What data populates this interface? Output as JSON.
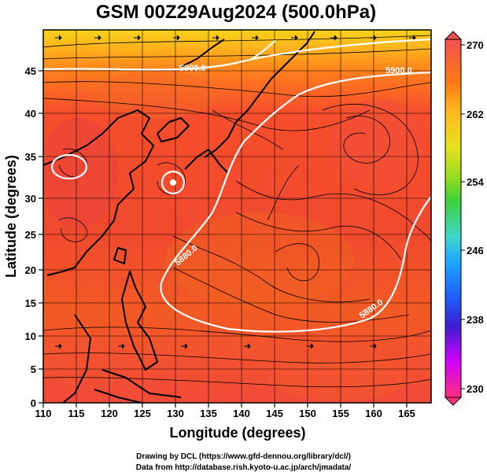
{
  "title": "GSM 00Z29Aug2024 (500.0hPa)",
  "x_axis": {
    "label": "Longitude (degrees)",
    "ticks": [
      "110",
      "115",
      "120",
      "125",
      "130",
      "135",
      "140",
      "145",
      "150",
      "155",
      "160",
      "165"
    ]
  },
  "y_axis": {
    "label": "Latitude  (degrees)",
    "ticks": [
      "0",
      "5",
      "10",
      "15",
      "20",
      "25",
      "30",
      "35",
      "40",
      "45"
    ]
  },
  "colorbar": {
    "ticks": [
      "270",
      "262",
      "254",
      "246",
      "238",
      "230"
    ],
    "colors": [
      "#ff2d7a",
      "#d400ff",
      "#3a1fd0",
      "#1f5cff",
      "#1fa8ff",
      "#3fd7c8",
      "#3fd23a",
      "#9fdc1e",
      "#e6e21e",
      "#ffb81e",
      "#ff7a14",
      "#ff4a1e",
      "#f25050"
    ]
  },
  "contours": [
    {
      "label": "5900.0"
    },
    {
      "label": "5900.0"
    },
    {
      "label": "5880.0"
    },
    {
      "label": "5880.0"
    }
  ],
  "credits": {
    "line1": "Drawing by DCL (https://www.gfd-dennou.org/library/dcl/)",
    "line2": "Data from http://database.rish.kyoto-u.ac.jp/arch/jmadata/"
  }
}
